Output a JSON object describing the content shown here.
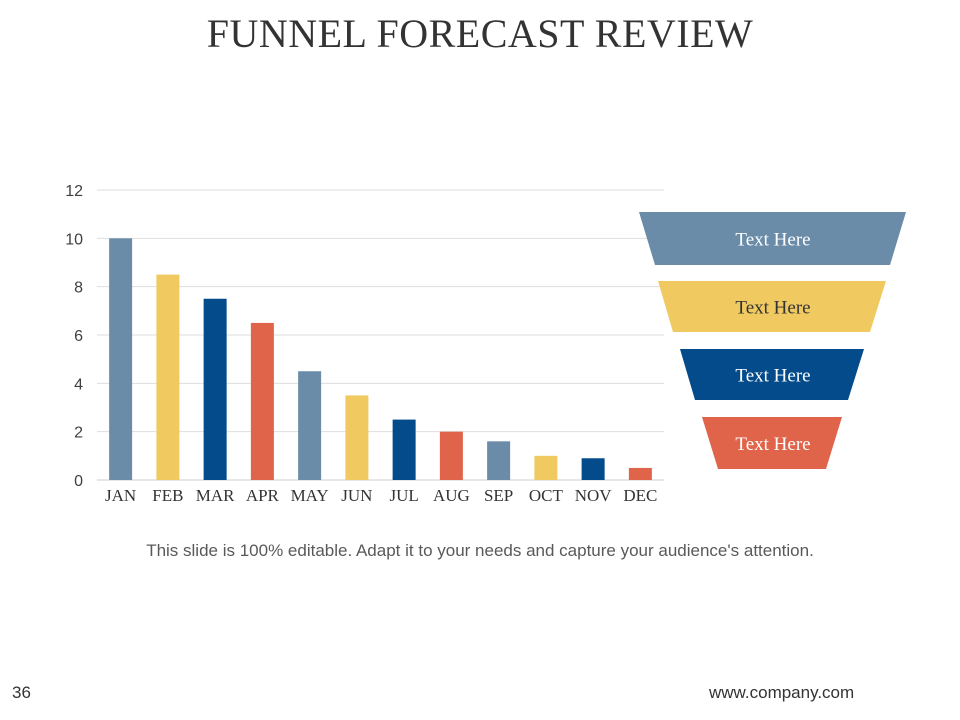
{
  "slide": {
    "title": "FUNNEL FORECAST REVIEW",
    "caption": "This slide is 100% editable. Adapt it to your needs and capture your audience's attention.",
    "page_number": "36",
    "website": "www.company.com"
  },
  "colors": {
    "steel_blue": "#6a8ca8",
    "gold": "#f0c960",
    "navy": "#034b8a",
    "orange": "#e0644a"
  },
  "funnel": {
    "levels": [
      {
        "label": "Text Here",
        "color": "#6a8ca8",
        "text_color": "#ffffff"
      },
      {
        "label": "Text Here",
        "color": "#f0c960",
        "text_color": "#333333"
      },
      {
        "label": "Text Here",
        "color": "#034b8a",
        "text_color": "#ffffff"
      },
      {
        "label": "Text Here",
        "color": "#e0644a",
        "text_color": "#ffffff"
      }
    ]
  },
  "chart_data": {
    "type": "bar",
    "categories": [
      "JAN",
      "FEB",
      "MAR",
      "APR",
      "MAY",
      "JUN",
      "JUL",
      "AUG",
      "SEP",
      "OCT",
      "NOV",
      "DEC"
    ],
    "values": [
      10,
      8.5,
      7.5,
      6.5,
      4.5,
      3.5,
      2.5,
      2,
      1.6,
      1,
      0.9,
      0.5
    ],
    "bar_colors": [
      "#6a8ca8",
      "#f0c960",
      "#034b8a",
      "#e0644a",
      "#6a8ca8",
      "#f0c960",
      "#034b8a",
      "#e0644a",
      "#6a8ca8",
      "#f0c960",
      "#034b8a",
      "#e0644a"
    ],
    "title": "",
    "xlabel": "",
    "ylabel": "",
    "ylim": [
      0,
      12
    ],
    "yticks": [
      0,
      2,
      4,
      6,
      8,
      10,
      12
    ],
    "grid": true,
    "legend": "none"
  }
}
